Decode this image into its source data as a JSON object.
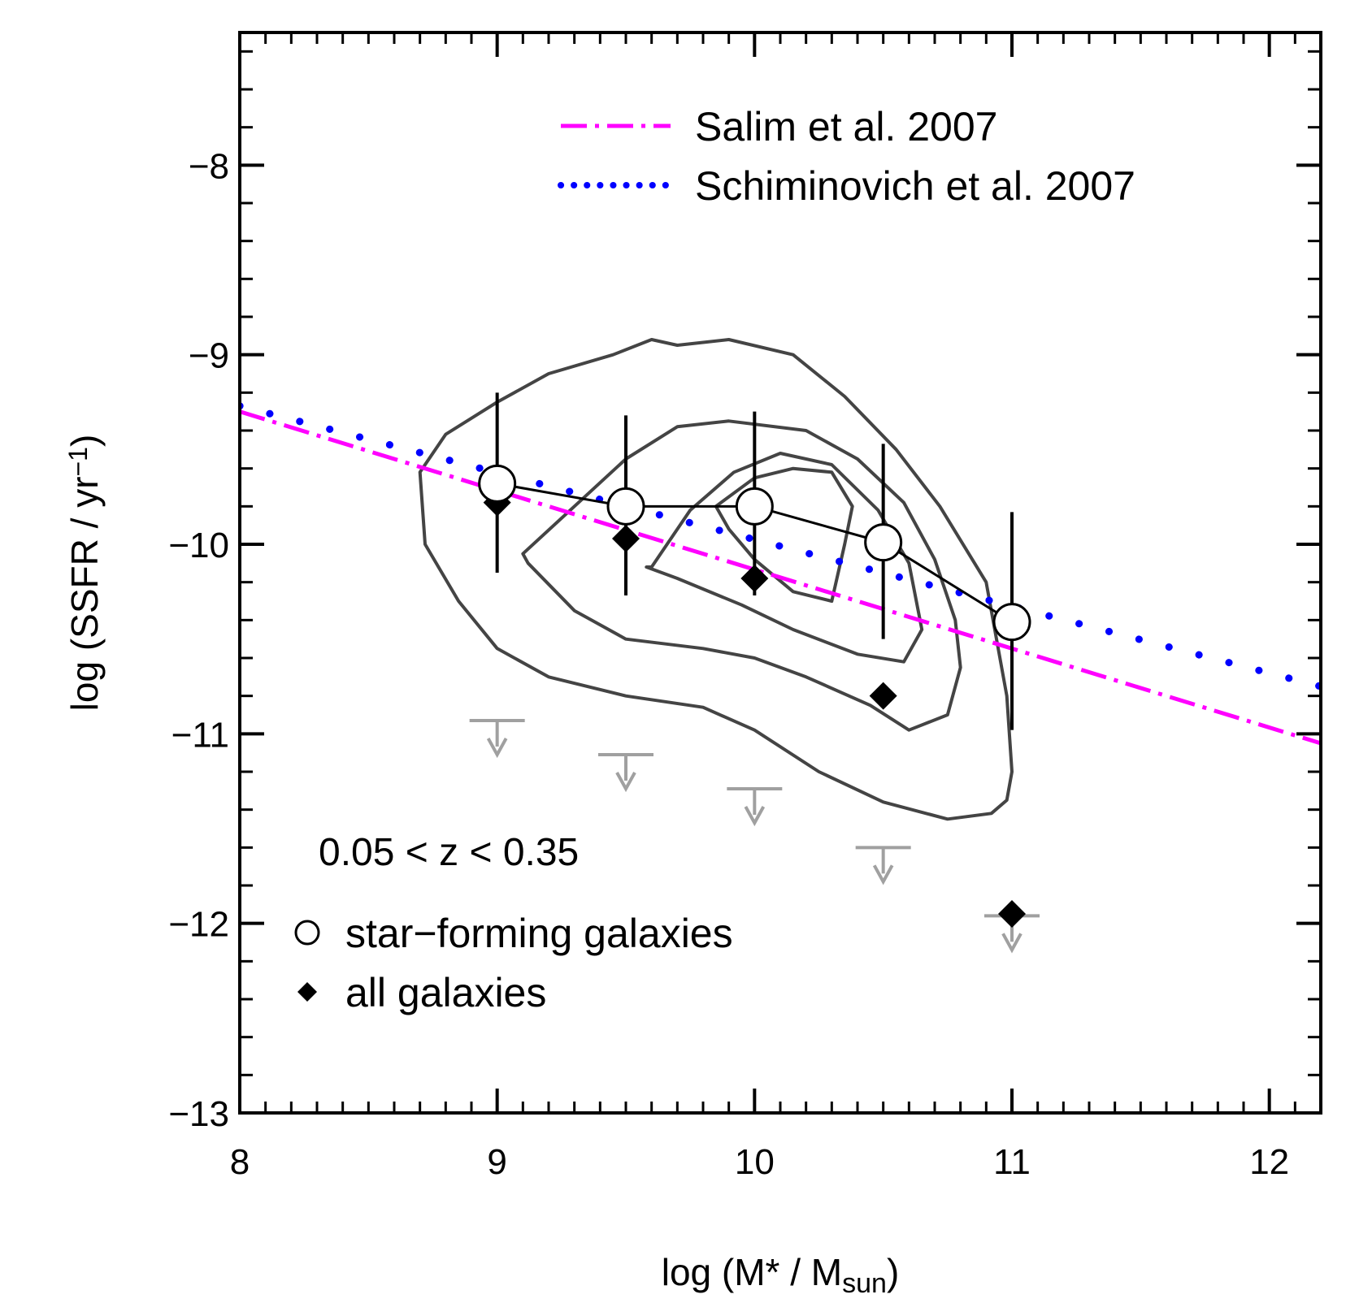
{
  "chart_data": {
    "type": "scatter",
    "xlabel": {
      "prefix": "log (M* / M",
      "sub": "sun",
      "suffix": ")"
    },
    "ylabel": {
      "prefix": "log (SSFR / yr",
      "sup": "−1",
      "suffix": ")"
    },
    "xlim": [
      8,
      12.2
    ],
    "ylim": [
      -13,
      -7.3
    ],
    "xticks": [
      8,
      9,
      10,
      11,
      12
    ],
    "xtick_labels": [
      "8",
      "9",
      "10",
      "11",
      "12"
    ],
    "yticks": [
      -8,
      -9,
      -10,
      -11,
      -12,
      -13
    ],
    "ytick_labels": [
      "−8",
      "−9",
      "−10",
      "−11",
      "−12",
      "−13"
    ],
    "annotation": "0.05 < z < 0.35",
    "series": [
      {
        "name": "star−forming galaxies",
        "marker": "open-circle",
        "connected": true,
        "x": [
          9.0,
          9.5,
          10.0,
          10.5,
          11.0
        ],
        "y": [
          -9.68,
          -9.8,
          -9.8,
          -9.99,
          -10.41
        ],
        "err_low": [
          -10.15,
          -10.27,
          -10.27,
          -10.5,
          -10.98
        ],
        "err_high": [
          -9.2,
          -9.32,
          -9.3,
          -9.47,
          -9.83
        ]
      },
      {
        "name": "all galaxies",
        "marker": "filled-diamond",
        "x": [
          9.0,
          9.5,
          10.0,
          10.5,
          11.0
        ],
        "y": [
          -9.78,
          -9.97,
          -10.18,
          -10.8,
          -11.95
        ]
      },
      {
        "name": "upper limits",
        "marker": "down-arrow",
        "color": "#a0a0a0",
        "x": [
          9.0,
          9.5,
          10.0,
          10.5,
          11.0
        ],
        "y": [
          -10.93,
          -11.11,
          -11.29,
          -11.6,
          -11.96
        ]
      },
      {
        "name": "Salim et al. 2007",
        "type": "line",
        "style": "dash-dot",
        "color": "#ff00ff",
        "x": [
          8.0,
          12.2
        ],
        "y": [
          -9.3,
          -11.05
        ]
      },
      {
        "name": "Schiminovich et al. 2007",
        "type": "line",
        "style": "dotted",
        "color": "#0000ff",
        "x": [
          8.0,
          12.2
        ],
        "y": [
          -9.27,
          -10.75
        ]
      }
    ],
    "contours": [
      {
        "level": "outer",
        "x": [
          8.7,
          8.8,
          9.0,
          9.2,
          9.45,
          9.6,
          9.7,
          9.9,
          10.15,
          10.35,
          10.55,
          10.72,
          10.9,
          10.98,
          11.0,
          10.98,
          10.92,
          10.75,
          10.5,
          10.25,
          10.0,
          9.8,
          9.5,
          9.2,
          9.0,
          8.85,
          8.72,
          8.7
        ],
        "y": [
          -9.62,
          -9.42,
          -9.25,
          -9.1,
          -9.0,
          -8.92,
          -8.95,
          -8.92,
          -9.0,
          -9.22,
          -9.5,
          -9.8,
          -10.2,
          -10.8,
          -11.2,
          -11.35,
          -11.42,
          -11.45,
          -11.36,
          -11.2,
          -10.98,
          -10.86,
          -10.8,
          -10.7,
          -10.55,
          -10.3,
          -10.0,
          -9.62
        ]
      },
      {
        "level": "second",
        "x": [
          9.1,
          9.3,
          9.5,
          9.7,
          9.9,
          10.2,
          10.4,
          10.58,
          10.7,
          10.78,
          10.8,
          10.75,
          10.6,
          10.45,
          10.2,
          10.0,
          9.8,
          9.5,
          9.3,
          9.12,
          9.1
        ],
        "y": [
          -10.05,
          -9.8,
          -9.55,
          -9.38,
          -9.35,
          -9.4,
          -9.55,
          -9.78,
          -10.08,
          -10.4,
          -10.65,
          -10.9,
          -10.98,
          -10.85,
          -10.7,
          -10.6,
          -10.55,
          -10.5,
          -10.35,
          -10.1,
          -10.05
        ]
      },
      {
        "level": "third",
        "x": [
          9.6,
          9.75,
          9.92,
          10.1,
          10.3,
          10.48,
          10.6,
          10.65,
          10.58,
          10.4,
          10.15,
          9.95,
          9.7,
          9.58,
          9.6
        ],
        "y": [
          -10.12,
          -9.82,
          -9.62,
          -9.52,
          -9.58,
          -9.82,
          -10.1,
          -10.45,
          -10.62,
          -10.58,
          -10.45,
          -10.32,
          -10.18,
          -10.12,
          -10.12
        ]
      },
      {
        "level": "inner",
        "x": [
          9.85,
          10.0,
          10.15,
          10.3,
          10.38,
          10.35,
          10.3,
          10.15,
          10.0,
          9.9,
          9.85
        ],
        "y": [
          -9.8,
          -9.65,
          -9.6,
          -9.62,
          -9.8,
          -10.0,
          -10.3,
          -10.25,
          -10.08,
          -9.92,
          -9.8
        ]
      }
    ]
  },
  "legend": {
    "salim_label": "Salim et al. 2007",
    "schiminovich_label": "Schiminovich et al. 2007",
    "sf_label": "star−forming galaxies",
    "all_label": "all galaxies"
  },
  "colors": {
    "salim": "#ff00ff",
    "schiminovich": "#0000ff",
    "contour": "#444444",
    "upper_limit": "#a0a0a0",
    "axis": "#000000"
  }
}
